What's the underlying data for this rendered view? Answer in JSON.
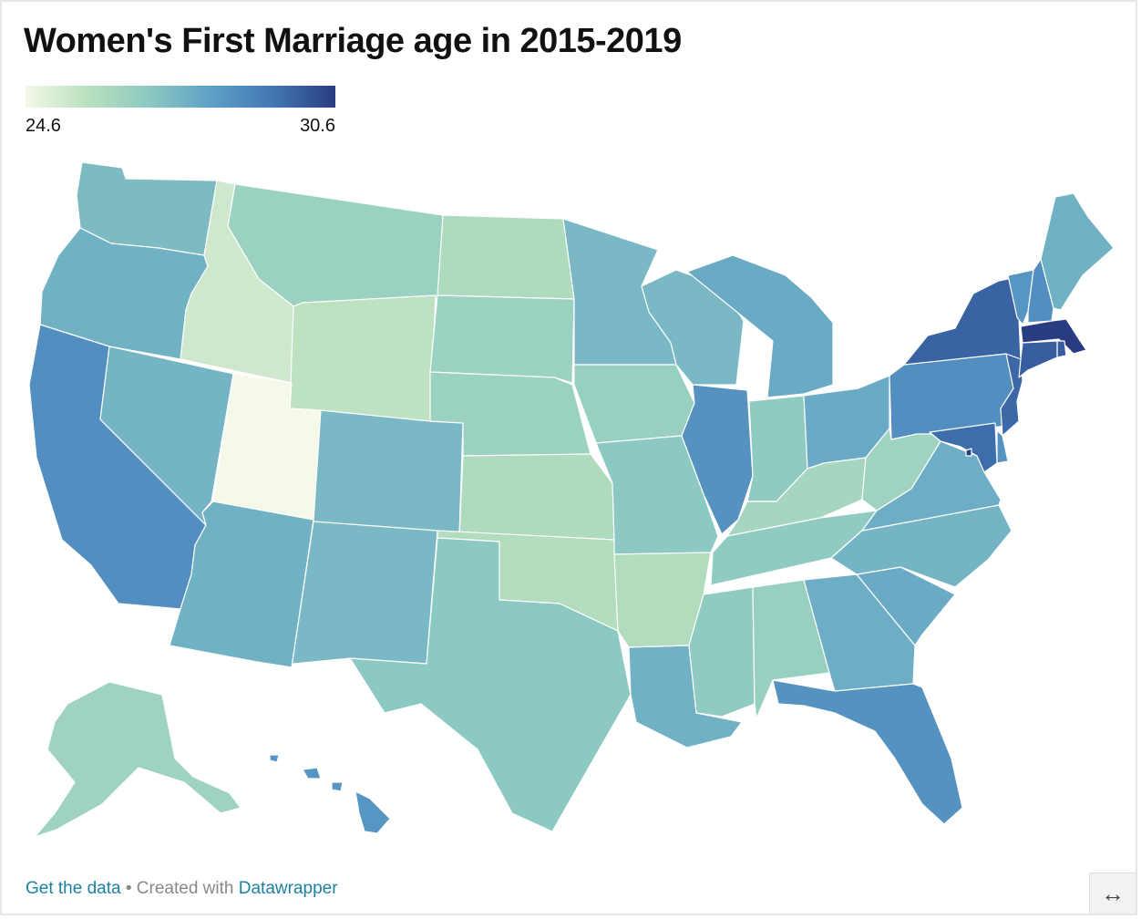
{
  "title": "Women's First Marriage age in 2015-2019",
  "legend": {
    "min_label": "24.6",
    "max_label": "30.6",
    "min": 24.6,
    "max": 30.6,
    "colors": [
      "#f4f9e9",
      "#b9e0bd",
      "#8cc9c2",
      "#5e9fc6",
      "#4277b4",
      "#293c82"
    ]
  },
  "map_data": {
    "type": "choropleth",
    "variable": "women_first_marriage_age",
    "states": [
      {
        "id": "WA",
        "value": 27.4
      },
      {
        "id": "OR",
        "value": 27.7
      },
      {
        "id": "CA",
        "value": 28.7
      },
      {
        "id": "NV",
        "value": 27.6
      },
      {
        "id": "ID",
        "value": 25.4
      },
      {
        "id": "MT",
        "value": 26.6
      },
      {
        "id": "WY",
        "value": 25.7
      },
      {
        "id": "UT",
        "value": 24.6
      },
      {
        "id": "CO",
        "value": 27.5
      },
      {
        "id": "AZ",
        "value": 27.7
      },
      {
        "id": "NM",
        "value": 27.5
      },
      {
        "id": "ND",
        "value": 26.1
      },
      {
        "id": "SD",
        "value": 26.6
      },
      {
        "id": "NE",
        "value": 26.6
      },
      {
        "id": "KS",
        "value": 26.1
      },
      {
        "id": "OK",
        "value": 26.0
      },
      {
        "id": "TX",
        "value": 27.0
      },
      {
        "id": "MN",
        "value": 27.5
      },
      {
        "id": "IA",
        "value": 26.7
      },
      {
        "id": "MO",
        "value": 27.0
      },
      {
        "id": "AR",
        "value": 26.0
      },
      {
        "id": "LA",
        "value": 27.7
      },
      {
        "id": "WI",
        "value": 27.5
      },
      {
        "id": "IL",
        "value": 28.6
      },
      {
        "id": "MI",
        "value": 27.9
      },
      {
        "id": "IN",
        "value": 26.9
      },
      {
        "id": "OH",
        "value": 27.9
      },
      {
        "id": "KY",
        "value": 26.3
      },
      {
        "id": "TN",
        "value": 26.9
      },
      {
        "id": "MS",
        "value": 26.9
      },
      {
        "id": "AL",
        "value": 26.7
      },
      {
        "id": "GA",
        "value": 27.8
      },
      {
        "id": "FL",
        "value": 28.6
      },
      {
        "id": "SC",
        "value": 27.9
      },
      {
        "id": "NC",
        "value": 27.6
      },
      {
        "id": "VA",
        "value": 27.8
      },
      {
        "id": "WV",
        "value": 26.5
      },
      {
        "id": "PA",
        "value": 28.7
      },
      {
        "id": "NY",
        "value": 29.8
      },
      {
        "id": "VT",
        "value": 28.5
      },
      {
        "id": "NH",
        "value": 28.7
      },
      {
        "id": "ME",
        "value": 27.7
      },
      {
        "id": "MA",
        "value": 30.6
      },
      {
        "id": "RI",
        "value": 29.9
      },
      {
        "id": "CT",
        "value": 29.9
      },
      {
        "id": "NJ",
        "value": 29.7
      },
      {
        "id": "DE",
        "value": 28.6
      },
      {
        "id": "MD",
        "value": 29.6
      },
      {
        "id": "DC",
        "value": 30.6
      },
      {
        "id": "AK",
        "value": 26.5
      },
      {
        "id": "HI",
        "value": 28.5
      }
    ]
  },
  "footer": {
    "get_data": "Get the data",
    "separator": " • ",
    "created_with": "Created with ",
    "tool": "Datawrapper"
  },
  "resize_icon": "↔"
}
